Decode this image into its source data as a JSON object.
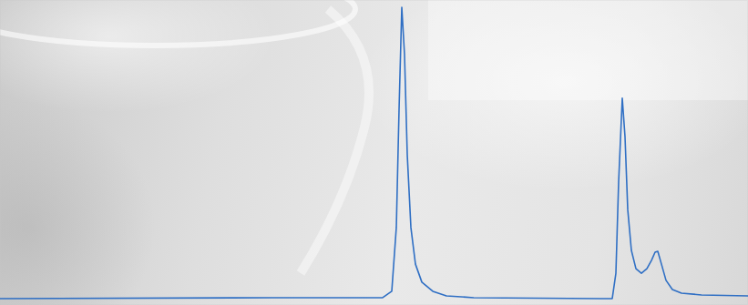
{
  "chart_data": {
    "type": "line",
    "x": [
      0,
      300,
      420,
      430,
      435,
      438,
      441,
      444,
      447,
      451,
      456,
      463,
      475,
      490,
      520,
      660,
      672,
      676,
      679,
      683,
      686,
      689,
      693,
      698,
      704,
      710,
      715,
      719,
      722,
      726,
      731,
      738,
      748,
      770,
      821
    ],
    "values": [
      2.1,
      2.4,
      2.4,
      4.5,
      25.4,
      64.2,
      97.6,
      82.1,
      49.3,
      25.4,
      13.4,
      7.5,
      4.5,
      3.0,
      2.4,
      2.1,
      2.1,
      10.4,
      40.3,
      67.8,
      55.2,
      31.3,
      17.9,
      11.9,
      10.4,
      11.9,
      14.6,
      17.3,
      17.6,
      13.4,
      8.1,
      5.1,
      3.9,
      3.3,
      3.0
    ],
    "color": "#2f6fc4",
    "xlim": [
      0,
      821
    ],
    "ylim": [
      0,
      100
    ],
    "xticks": [],
    "yticks": [],
    "grid": false,
    "tick_labels": false
  }
}
